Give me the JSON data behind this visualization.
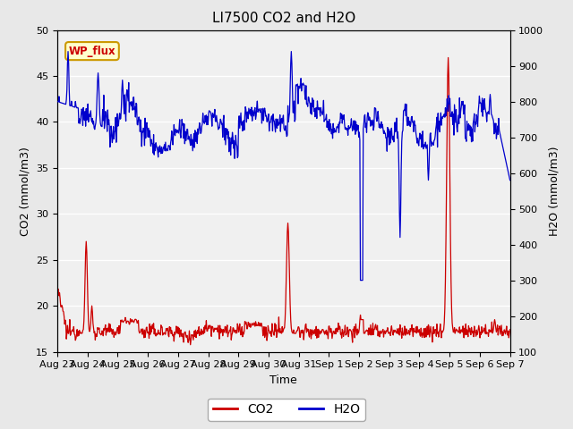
{
  "title": "LI7500 CO2 and H2O",
  "xlabel": "Time",
  "ylabel_left": "CO2 (mmol/m3)",
  "ylabel_right": "H2O (mmol/m3)",
  "ylim_left": [
    15,
    50
  ],
  "ylim_right": [
    100,
    1000
  ],
  "yticks_left": [
    15,
    20,
    25,
    30,
    35,
    40,
    45,
    50
  ],
  "yticks_right": [
    100,
    200,
    300,
    400,
    500,
    600,
    700,
    800,
    900,
    1000
  ],
  "x_tick_labels": [
    "Aug 23",
    "Aug 24",
    "Aug 25",
    "Aug 26",
    "Aug 27",
    "Aug 28",
    "Aug 29",
    "Aug 30",
    "Aug 31",
    "Sep 1",
    "Sep 2",
    "Sep 3",
    "Sep 4",
    "Sep 5",
    "Sep 6",
    "Sep 7"
  ],
  "co2_color": "#cc0000",
  "h2o_color": "#0000cc",
  "background_color": "#e8e8e8",
  "plot_bg_color": "#f0f0f0",
  "legend_co2_label": "CO2",
  "legend_h2o_label": "H2O",
  "annotation_text": "WP_flux",
  "annotation_color": "#cc0000",
  "annotation_bg": "#ffffcc",
  "annotation_border": "#cc9900",
  "title_fontsize": 11,
  "axis_fontsize": 9,
  "tick_fontsize": 8,
  "legend_fontsize": 10
}
